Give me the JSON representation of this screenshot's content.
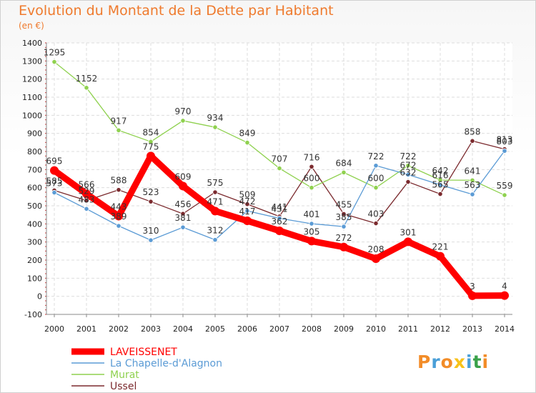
{
  "chart_data": {
    "type": "line",
    "title": "Evolution du Montant de la Dette par Habitant",
    "subtitle": "(en €)",
    "x": [
      "2000",
      "2001",
      "2002",
      "2003",
      "2004",
      "2005",
      "2006",
      "2007",
      "2008",
      "2009",
      "2010",
      "2011",
      "2012",
      "2013",
      "2014"
    ],
    "ylim": [
      -100,
      1400
    ],
    "yticks": [
      -100,
      0,
      100,
      200,
      300,
      400,
      500,
      600,
      700,
      800,
      900,
      1000,
      1100,
      1200,
      1300,
      1400
    ],
    "grid": true,
    "legend_position": "bottom-left",
    "series": [
      {
        "name": "LAVEISSENET",
        "color": "#ff0000",
        "values": [
          695,
          566,
          443,
          775,
          609,
          471,
          417,
          362,
          305,
          272,
          208,
          301,
          221,
          3,
          4
        ]
      },
      {
        "name": "La Chapelle-d'Alagnon",
        "color": "#5b9bd5",
        "values": [
          573,
          483,
          389,
          310,
          381,
          312,
          472,
          431,
          401,
          385,
          722,
          672,
          616,
          563,
          803
        ]
      },
      {
        "name": "Murat",
        "color": "#8fd14f",
        "values": [
          1295,
          1152,
          917,
          854,
          970,
          934,
          849,
          707,
          600,
          684,
          600,
          722,
          642,
          641,
          559
        ]
      },
      {
        "name": "Ussel",
        "color": "#7b2a2e",
        "values": [
          585,
          529,
          588,
          523,
          456,
          575,
          509,
          441,
          716,
          455,
          403,
          632,
          565,
          858,
          813
        ]
      }
    ]
  },
  "brand": {
    "logo_letters": [
      "P",
      "r",
      "o",
      "x",
      "i",
      "t",
      "i"
    ],
    "logo_colors": [
      "#f28c28",
      "#4a9fd8",
      "#f28c28",
      "#f7c21a",
      "#4a9fd8",
      "#3aa14a",
      "#f28c28"
    ]
  }
}
